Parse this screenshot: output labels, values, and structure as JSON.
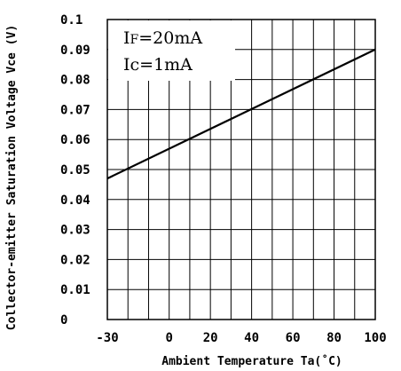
{
  "chart_data": {
    "type": "line",
    "title": "",
    "xlabel": "Ambient Temperature Ta(˚C)",
    "ylabel": "Collector-emitter Saturation  Voltage Vce (V)",
    "xlim": [
      -30,
      100
    ],
    "ylim": [
      0,
      0.1
    ],
    "x_ticks": [
      -30,
      0,
      20,
      40,
      60,
      80,
      100
    ],
    "x_tick_labels": [
      "-30",
      "0",
      "20",
      "40",
      "60",
      "80",
      "100"
    ],
    "y_ticks": [
      0,
      0.01,
      0.02,
      0.03,
      0.04,
      0.05,
      0.06,
      0.07,
      0.08,
      0.09,
      0.1
    ],
    "y_tick_labels": [
      "0",
      "0.01",
      "0.02",
      "0.03",
      "0.04",
      "0.05",
      "0.06",
      "0.07",
      "0.08",
      "0.09",
      "0.1"
    ],
    "x_grid": [
      -30,
      -20,
      -10,
      0,
      10,
      20,
      30,
      40,
      50,
      60,
      70,
      80,
      90,
      100
    ],
    "y_grid": [
      0,
      0.01,
      0.02,
      0.03,
      0.04,
      0.05,
      0.06,
      0.07,
      0.08,
      0.09,
      0.1
    ],
    "grid": true,
    "annotations": [
      "IF=20mA",
      "Ic=1mA"
    ],
    "series": [
      {
        "x": [
          -30,
          100
        ],
        "y": [
          0.047,
          0.09
        ]
      }
    ]
  }
}
